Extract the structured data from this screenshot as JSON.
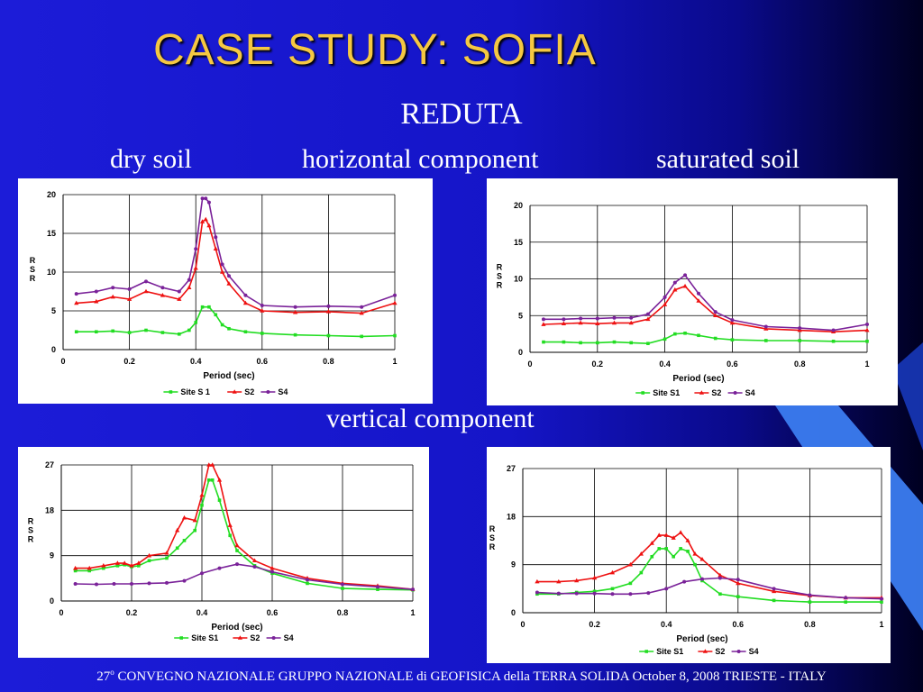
{
  "slide": {
    "title": "CASE STUDY: SOFIA",
    "subtitle": "REDUTA",
    "labels": {
      "dry": "dry soil",
      "horizontal": "horizontal component",
      "saturated": "saturated soil",
      "vertical": "vertical component"
    },
    "footer": {
      "num": "27",
      "sup": "o",
      "text": " CONVEGNO NAZIONALE GRUPPO NAZIONALE di GEOFISICA della TERRA SOLIDA October 8, 2008 TRIESTE - ITALY"
    },
    "colors": {
      "title": "#f5c842",
      "background": "#1c1cd8"
    }
  },
  "chart_data": [
    {
      "id": "dry-horizontal",
      "type": "line",
      "xlabel": "Period (sec)",
      "ylabel": "R\nS\nR",
      "xlim": [
        0,
        1
      ],
      "ylim": [
        0,
        20
      ],
      "xticks": [
        0,
        0.2,
        0.4,
        0.6,
        0.8,
        1
      ],
      "xtick_labels": [
        "0",
        "0.2",
        "0.4",
        "0.6",
        "0.8",
        "1"
      ],
      "yticks": [
        0,
        5,
        10,
        15,
        20
      ],
      "ytick_labels": [
        "0",
        "5",
        "10",
        "15",
        "20"
      ],
      "legend_position": "bottom",
      "series": [
        {
          "name": "Site S 1",
          "color": "#22dd22",
          "marker": "square",
          "x": [
            0.04,
            0.1,
            0.15,
            0.2,
            0.25,
            0.3,
            0.35,
            0.38,
            0.4,
            0.42,
            0.44,
            0.46,
            0.48,
            0.5,
            0.55,
            0.6,
            0.7,
            0.8,
            0.9,
            1.0
          ],
          "y": [
            2.3,
            2.3,
            2.4,
            2.2,
            2.5,
            2.2,
            2.0,
            2.5,
            3.5,
            5.5,
            5.5,
            4.5,
            3.2,
            2.7,
            2.3,
            2.1,
            1.9,
            1.8,
            1.7,
            1.8
          ]
        },
        {
          "name": "S2",
          "color": "#ee1111",
          "marker": "triangle",
          "x": [
            0.04,
            0.1,
            0.15,
            0.2,
            0.25,
            0.3,
            0.35,
            0.38,
            0.4,
            0.42,
            0.43,
            0.44,
            0.46,
            0.48,
            0.5,
            0.55,
            0.6,
            0.7,
            0.8,
            0.9,
            1.0
          ],
          "y": [
            6.0,
            6.2,
            6.8,
            6.5,
            7.5,
            7.0,
            6.5,
            8.0,
            10.5,
            16.5,
            16.8,
            16.0,
            13.0,
            10.0,
            8.5,
            6.0,
            5.0,
            4.8,
            4.9,
            4.7,
            6.0
          ]
        },
        {
          "name": "S4",
          "color": "#7a2299",
          "marker": "circle",
          "x": [
            0.04,
            0.1,
            0.15,
            0.2,
            0.25,
            0.3,
            0.35,
            0.38,
            0.4,
            0.42,
            0.43,
            0.44,
            0.46,
            0.48,
            0.5,
            0.55,
            0.6,
            0.7,
            0.8,
            0.9,
            1.0
          ],
          "y": [
            7.2,
            7.5,
            8.0,
            7.8,
            8.8,
            8.0,
            7.5,
            9.0,
            13.0,
            19.5,
            19.5,
            19.0,
            14.5,
            11.0,
            9.5,
            7.0,
            5.7,
            5.5,
            5.6,
            5.5,
            7.0
          ]
        }
      ]
    },
    {
      "id": "saturated-horizontal",
      "type": "line",
      "xlabel": "Period (sec)",
      "ylabel": "R\nS\nR",
      "xlim": [
        0,
        1
      ],
      "ylim": [
        0,
        20
      ],
      "xticks": [
        0,
        0.2,
        0.4,
        0.6,
        0.8,
        1
      ],
      "xtick_labels": [
        "0",
        "0.2",
        "0.4",
        "0.6",
        "0.8",
        "1"
      ],
      "yticks": [
        0,
        5,
        10,
        15,
        20
      ],
      "ytick_labels": [
        "0",
        "5",
        "10",
        "15",
        "20"
      ],
      "legend_position": "bottom",
      "series": [
        {
          "name": "Site S1",
          "color": "#22dd22",
          "marker": "square",
          "x": [
            0.04,
            0.1,
            0.15,
            0.2,
            0.25,
            0.3,
            0.35,
            0.4,
            0.43,
            0.46,
            0.5,
            0.55,
            0.6,
            0.7,
            0.8,
            0.9,
            1.0
          ],
          "y": [
            1.4,
            1.4,
            1.3,
            1.3,
            1.4,
            1.3,
            1.2,
            1.8,
            2.5,
            2.6,
            2.3,
            1.9,
            1.7,
            1.6,
            1.6,
            1.5,
            1.5
          ]
        },
        {
          "name": "S2",
          "color": "#ee1111",
          "marker": "triangle",
          "x": [
            0.04,
            0.1,
            0.15,
            0.2,
            0.25,
            0.3,
            0.35,
            0.4,
            0.43,
            0.46,
            0.5,
            0.55,
            0.6,
            0.7,
            0.8,
            0.9,
            1.0
          ],
          "y": [
            3.8,
            3.9,
            4.0,
            3.9,
            4.0,
            4.0,
            4.5,
            6.5,
            8.5,
            9.0,
            7.0,
            5.0,
            4.0,
            3.2,
            3.0,
            2.8,
            3.0
          ]
        },
        {
          "name": "S4",
          "color": "#7a2299",
          "marker": "circle",
          "x": [
            0.04,
            0.1,
            0.15,
            0.2,
            0.25,
            0.3,
            0.35,
            0.4,
            0.43,
            0.46,
            0.5,
            0.55,
            0.6,
            0.7,
            0.8,
            0.9,
            1.0
          ],
          "y": [
            4.5,
            4.5,
            4.6,
            4.6,
            4.7,
            4.7,
            5.2,
            7.5,
            9.5,
            10.5,
            8.0,
            5.5,
            4.4,
            3.5,
            3.3,
            3.0,
            3.8
          ]
        }
      ]
    },
    {
      "id": "dry-vertical",
      "type": "line",
      "xlabel": "Period (sec)",
      "ylabel": "R\nS\nR",
      "xlim": [
        0,
        1
      ],
      "ylim": [
        0,
        27
      ],
      "xticks": [
        0,
        0.2,
        0.4,
        0.6,
        0.8,
        1
      ],
      "xtick_labels": [
        "0",
        "0.2",
        "0.4",
        "0.6",
        "0.8",
        "1"
      ],
      "yticks": [
        0,
        9,
        18,
        27
      ],
      "ytick_labels": [
        "0",
        "9",
        "18",
        "27"
      ],
      "legend_position": "bottom",
      "series": [
        {
          "name": "Site S1",
          "color": "#22dd22",
          "marker": "square",
          "x": [
            0.04,
            0.08,
            0.12,
            0.16,
            0.18,
            0.2,
            0.22,
            0.25,
            0.3,
            0.33,
            0.35,
            0.38,
            0.4,
            0.42,
            0.43,
            0.45,
            0.48,
            0.5,
            0.55,
            0.6,
            0.7,
            0.8,
            0.9,
            1.0
          ],
          "y": [
            6.0,
            6.0,
            6.5,
            7.0,
            7.2,
            6.8,
            7.0,
            8.0,
            8.5,
            10.5,
            12.0,
            14.0,
            19.0,
            24.0,
            24.0,
            20.0,
            13.0,
            10.0,
            7.0,
            5.5,
            3.5,
            2.5,
            2.3,
            2.2
          ]
        },
        {
          "name": "S2",
          "color": "#ee1111",
          "marker": "triangle",
          "x": [
            0.04,
            0.08,
            0.12,
            0.16,
            0.18,
            0.2,
            0.22,
            0.25,
            0.3,
            0.33,
            0.35,
            0.38,
            0.4,
            0.42,
            0.43,
            0.45,
            0.48,
            0.5,
            0.55,
            0.6,
            0.7,
            0.8,
            0.9,
            1.0
          ],
          "y": [
            6.5,
            6.5,
            7.0,
            7.5,
            7.5,
            7.0,
            7.5,
            9.0,
            9.5,
            14.0,
            16.5,
            16.0,
            21.0,
            27.0,
            27.0,
            24.0,
            15.0,
            11.0,
            8.0,
            6.5,
            4.5,
            3.5,
            3.0,
            2.3
          ]
        },
        {
          "name": "S4",
          "color": "#7a2299",
          "marker": "circle",
          "x": [
            0.04,
            0.1,
            0.15,
            0.2,
            0.25,
            0.3,
            0.35,
            0.4,
            0.45,
            0.5,
            0.55,
            0.6,
            0.7,
            0.8,
            0.9,
            1.0
          ],
          "y": [
            3.4,
            3.3,
            3.4,
            3.4,
            3.5,
            3.6,
            4.0,
            5.5,
            6.5,
            7.3,
            6.8,
            5.8,
            4.2,
            3.3,
            2.8,
            2.3
          ]
        }
      ]
    },
    {
      "id": "saturated-vertical",
      "type": "line",
      "xlabel": "Period (sec)",
      "ylabel": "R\nS\nR",
      "xlim": [
        0,
        1
      ],
      "ylim": [
        0,
        27
      ],
      "xticks": [
        0,
        0.2,
        0.4,
        0.6,
        0.8,
        1
      ],
      "xtick_labels": [
        "0",
        "0.2",
        "0.4",
        "0.6",
        "0.8",
        "1"
      ],
      "yticks": [
        0,
        9,
        18,
        27
      ],
      "ytick_labels": [
        "0",
        "9",
        "18",
        "27"
      ],
      "legend_position": "bottom",
      "series": [
        {
          "name": "Site S1",
          "color": "#22dd22",
          "marker": "square",
          "x": [
            0.04,
            0.1,
            0.15,
            0.2,
            0.25,
            0.3,
            0.33,
            0.36,
            0.38,
            0.4,
            0.42,
            0.44,
            0.46,
            0.48,
            0.5,
            0.55,
            0.6,
            0.7,
            0.8,
            0.9,
            1.0
          ],
          "y": [
            3.5,
            3.5,
            3.8,
            4.0,
            4.5,
            5.5,
            7.5,
            10.5,
            12.0,
            12.0,
            10.5,
            12.0,
            11.5,
            9.0,
            6.0,
            3.5,
            3.0,
            2.3,
            2.0,
            2.0,
            2.0
          ]
        },
        {
          "name": "S2",
          "color": "#ee1111",
          "marker": "triangle",
          "x": [
            0.04,
            0.1,
            0.15,
            0.2,
            0.25,
            0.3,
            0.33,
            0.36,
            0.38,
            0.4,
            0.42,
            0.44,
            0.46,
            0.48,
            0.5,
            0.55,
            0.6,
            0.7,
            0.8,
            0.9,
            1.0
          ],
          "y": [
            5.8,
            5.8,
            6.0,
            6.5,
            7.5,
            9.0,
            11.0,
            13.0,
            14.5,
            14.5,
            14.0,
            15.0,
            13.5,
            11.0,
            10.0,
            7.0,
            5.5,
            4.0,
            3.2,
            2.8,
            2.8
          ]
        },
        {
          "name": "S4",
          "color": "#7a2299",
          "marker": "circle",
          "x": [
            0.04,
            0.1,
            0.15,
            0.2,
            0.25,
            0.3,
            0.35,
            0.4,
            0.45,
            0.5,
            0.55,
            0.6,
            0.7,
            0.8,
            0.9,
            1.0
          ],
          "y": [
            3.8,
            3.6,
            3.6,
            3.6,
            3.5,
            3.5,
            3.7,
            4.5,
            5.8,
            6.3,
            6.5,
            6.2,
            4.5,
            3.3,
            2.8,
            2.6
          ]
        }
      ]
    }
  ]
}
